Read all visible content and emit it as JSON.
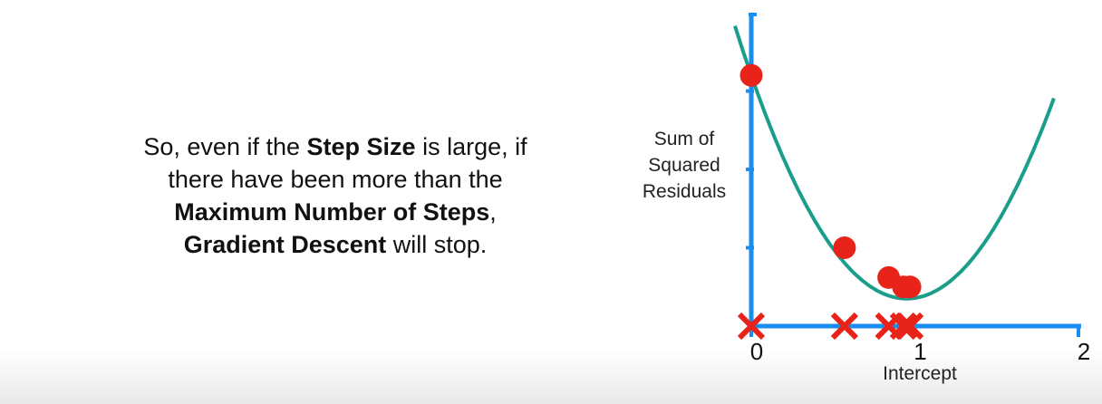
{
  "caption": {
    "segments": [
      {
        "text": "So, even if the ",
        "bold": false
      },
      {
        "text": "Step Size",
        "bold": true
      },
      {
        "text": " is large, if there have been more than the ",
        "bold": false
      },
      {
        "text": "Maximum Number of Steps",
        "bold": true
      },
      {
        "text": ", ",
        "bold": false
      },
      {
        "text": "Gradient Descent",
        "bold": true
      },
      {
        "text": " will stop.",
        "bold": false
      }
    ]
  },
  "chart_data": {
    "type": "line",
    "xlabel": "Intercept",
    "ylabel_lines": [
      "Sum of",
      "Squared",
      "Residuals"
    ],
    "xlim": [
      0,
      2
    ],
    "ylim": [
      0,
      4
    ],
    "x_ticks": [
      0,
      1,
      2
    ],
    "y_ticks_unlabeled": [
      1,
      2,
      3
    ],
    "grid": false,
    "curve": {
      "type": "parabola",
      "vertex_x": 0.95,
      "vertex_y": 0.35,
      "y_at_0": 3.2,
      "x_range": [
        -0.1,
        1.85
      ]
    },
    "steps": [
      {
        "x": 0,
        "y": 3.2
      },
      {
        "x": 0.57,
        "y": 1.0
      },
      {
        "x": 0.84,
        "y": 0.62
      },
      {
        "x": 0.93,
        "y": 0.5
      },
      {
        "x": 0.97,
        "y": 0.5
      }
    ],
    "colors": {
      "axis": "#1a8ef0",
      "curve": "#1a9e8a",
      "points": "#e8231a",
      "x_marks": "#e8231a"
    }
  }
}
